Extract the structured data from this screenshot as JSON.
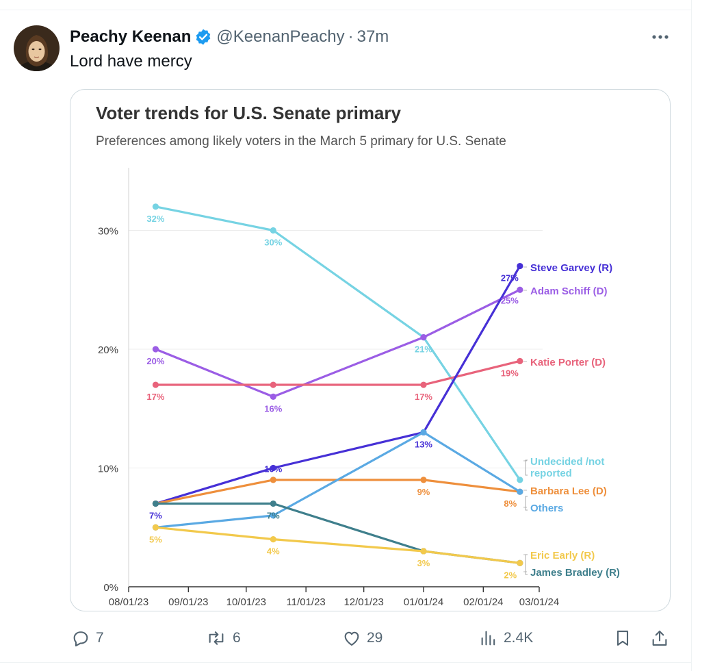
{
  "post": {
    "author_name": "Peachy Keenan",
    "handle": "@KeenanPeachy",
    "separator": "·",
    "time": "37m",
    "text": "Lord have mercy",
    "more_icon": "more-horizontal-icon",
    "verified_icon": "verified-badge-icon"
  },
  "chart": {
    "title": "Voter trends for U.S. Senate primary",
    "subtitle": "Preferences among likely voters in the March 5 primary for U.S. Senate"
  },
  "chart_data": {
    "type": "line",
    "title": "Voter trends for U.S. Senate primary",
    "subtitle": "Preferences among likely voters in the March 5 primary for U.S. Senate",
    "xlabel": "",
    "ylabel": "",
    "x_ticks": [
      "08/01/23",
      "09/01/23",
      "10/01/23",
      "11/01/23",
      "12/01/23",
      "01/01/24",
      "02/01/24",
      "03/01/24"
    ],
    "y_ticks": [
      "0%",
      "10%",
      "20%",
      "30%"
    ],
    "ylim": [
      0,
      35
    ],
    "grid": true,
    "legend": "labels at right end of lines",
    "series": [
      {
        "name": "Undecided /not reported",
        "color": "#76d3e3",
        "points": [
          {
            "x": "08/15/23",
            "y": 32,
            "label": "32%"
          },
          {
            "x": "10/15/23",
            "y": 30,
            "label": "30%"
          },
          {
            "x": "01/01/24",
            "y": 21,
            "label": "21%"
          },
          {
            "x": "02/20/24",
            "y": 9,
            "label": ""
          }
        ]
      },
      {
        "name": "Adam Schiff (D)",
        "color": "#9b5de5",
        "points": [
          {
            "x": "08/15/23",
            "y": 20,
            "label": "20%"
          },
          {
            "x": "10/15/23",
            "y": 16,
            "label": "16%"
          },
          {
            "x": "01/01/24",
            "y": 21,
            "label": ""
          },
          {
            "x": "02/20/24",
            "y": 25,
            "label": "25%"
          }
        ]
      },
      {
        "name": "Katie Porter (D)",
        "color": "#e8637b",
        "points": [
          {
            "x": "08/15/23",
            "y": 17,
            "label": "17%"
          },
          {
            "x": "10/15/23",
            "y": 17,
            "label": ""
          },
          {
            "x": "01/01/24",
            "y": 17,
            "label": "17%"
          },
          {
            "x": "02/20/24",
            "y": 19,
            "label": "19%"
          }
        ]
      },
      {
        "name": "Steve Garvey (R)",
        "color": "#4630d6",
        "points": [
          {
            "x": "08/15/23",
            "y": 7,
            "label": "7%"
          },
          {
            "x": "10/15/23",
            "y": 10,
            "label": "10%"
          },
          {
            "x": "01/01/24",
            "y": 13,
            "label": "13%"
          },
          {
            "x": "02/20/24",
            "y": 27,
            "label": "27%"
          }
        ]
      },
      {
        "name": "Barbara Lee (D)",
        "color": "#ee8f3c",
        "points": [
          {
            "x": "08/15/23",
            "y": 7,
            "label": ""
          },
          {
            "x": "10/15/23",
            "y": 9,
            "label": ""
          },
          {
            "x": "01/01/24",
            "y": 9,
            "label": "9%"
          },
          {
            "x": "02/20/24",
            "y": 8,
            "label": "8%"
          }
        ]
      },
      {
        "name": "Others",
        "color": "#5aa9e3",
        "points": [
          {
            "x": "08/15/23",
            "y": 5,
            "label": ""
          },
          {
            "x": "10/15/23",
            "y": 6,
            "label": ""
          },
          {
            "x": "01/01/24",
            "y": 13,
            "label": ""
          },
          {
            "x": "02/20/24",
            "y": 8,
            "label": ""
          }
        ]
      },
      {
        "name": "James Bradley (R)",
        "color": "#3f7f8c",
        "points": [
          {
            "x": "08/15/23",
            "y": 7,
            "label": ""
          },
          {
            "x": "10/15/23",
            "y": 7,
            "label": "7%"
          },
          {
            "x": "01/01/24",
            "y": 3,
            "label": ""
          },
          {
            "x": "02/20/24",
            "y": 2,
            "label": ""
          }
        ]
      },
      {
        "name": "Eric Early (R)",
        "color": "#f2c94c",
        "points": [
          {
            "x": "08/15/23",
            "y": 5,
            "label": "5%"
          },
          {
            "x": "10/15/23",
            "y": 4,
            "label": "4%"
          },
          {
            "x": "01/01/24",
            "y": 3,
            "label": "3%"
          },
          {
            "x": "02/20/24",
            "y": 2,
            "label": "2%"
          }
        ]
      }
    ]
  },
  "actions": {
    "reply": {
      "icon": "reply-icon",
      "count": "7"
    },
    "repost": {
      "icon": "repost-icon",
      "count": "6"
    },
    "like": {
      "icon": "heart-icon",
      "count": "29"
    },
    "views": {
      "icon": "views-icon",
      "count": "2.4K"
    },
    "bookmark": {
      "icon": "bookmark-icon"
    },
    "share": {
      "icon": "share-icon"
    }
  }
}
